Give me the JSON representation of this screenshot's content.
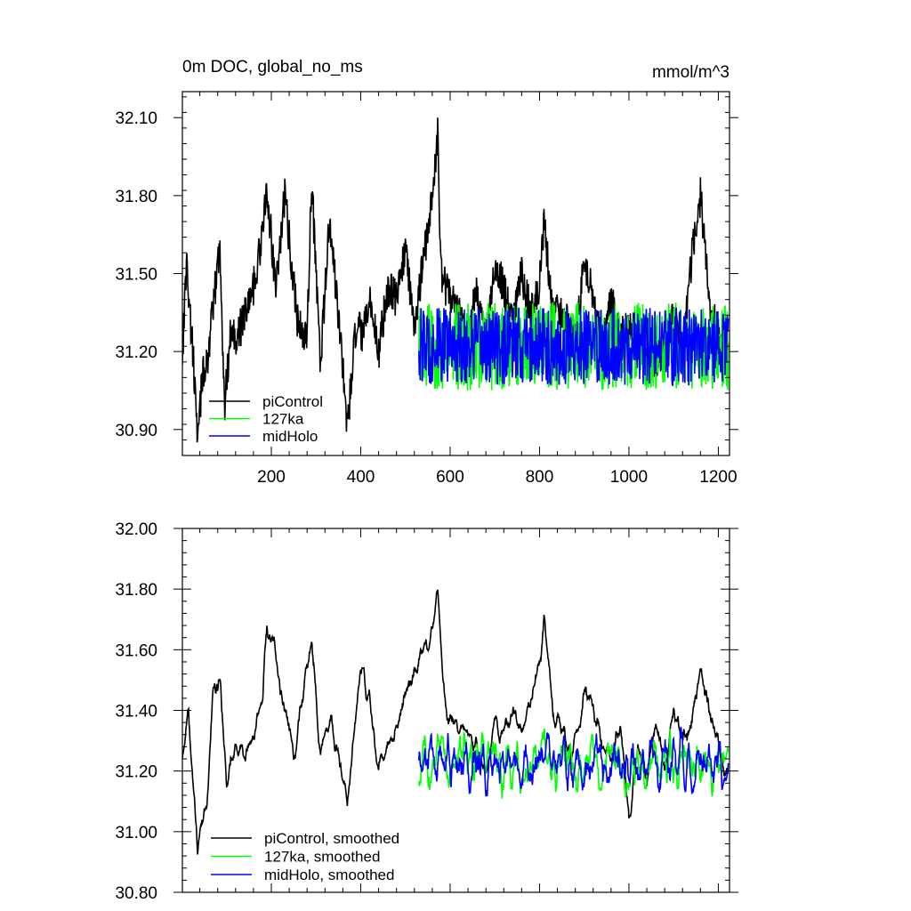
{
  "chart_data": [
    {
      "type": "line",
      "title": "0m DOC, global_no_ms",
      "units": "mmol/m^3",
      "xlim": [
        1,
        1225
      ],
      "ylim": [
        30.8,
        32.2
      ],
      "x_ticks": [
        200,
        400,
        600,
        800,
        1000,
        1200
      ],
      "x_tick_labels": [
        "200",
        "400",
        "600",
        "800",
        "1000",
        "1200"
      ],
      "y_ticks": [
        30.9,
        31.2,
        31.5,
        31.8,
        32.1
      ],
      "y_tick_labels": [
        "30.90",
        "31.20",
        "31.50",
        "31.80",
        "32.10"
      ],
      "grid": false,
      "legend_position": "bottom-left",
      "series": [
        {
          "name": "piControl",
          "color": "#000000",
          "x_start": 1,
          "x_end": 1220,
          "mean": 31.33,
          "amplitude": 0.17,
          "values": [
            [
              1,
              31.18
            ],
            [
              10,
              31.55
            ],
            [
              20,
              31.3
            ],
            [
              30,
              31.05
            ],
            [
              35,
              30.82
            ],
            [
              45,
              31.1
            ],
            [
              60,
              31.2
            ],
            [
              75,
              31.45
            ],
            [
              85,
              31.62
            ],
            [
              95,
              30.98
            ],
            [
              110,
              31.3
            ],
            [
              125,
              31.25
            ],
            [
              140,
              31.35
            ],
            [
              160,
              31.45
            ],
            [
              180,
              31.65
            ],
            [
              190,
              31.82
            ],
            [
              210,
              31.45
            ],
            [
              230,
              31.8
            ],
            [
              260,
              31.3
            ],
            [
              280,
              31.25
            ],
            [
              290,
              31.86
            ],
            [
              310,
              31.15
            ],
            [
              330,
              31.7
            ],
            [
              360,
              31.15
            ],
            [
              370,
              30.9
            ],
            [
              390,
              31.3
            ],
            [
              405,
              31.25
            ],
            [
              420,
              31.4
            ],
            [
              440,
              31.2
            ],
            [
              460,
              31.45
            ],
            [
              480,
              31.4
            ],
            [
              500,
              31.6
            ],
            [
              520,
              31.3
            ],
            [
              540,
              31.55
            ],
            [
              560,
              31.78
            ],
            [
              572,
              32.05
            ],
            [
              580,
              31.5
            ],
            [
              600,
              31.4
            ],
            [
              620,
              31.35
            ],
            [
              640,
              31.25
            ],
            [
              660,
              31.45
            ],
            [
              680,
              31.2
            ],
            [
              700,
              31.55
            ],
            [
              720,
              31.45
            ],
            [
              740,
              31.3
            ],
            [
              760,
              31.5
            ],
            [
              780,
              31.35
            ],
            [
              800,
              31.45
            ],
            [
              810,
              31.7
            ],
            [
              830,
              31.35
            ],
            [
              850,
              31.35
            ],
            [
              880,
              31.25
            ],
            [
              900,
              31.55
            ],
            [
              920,
              31.4
            ],
            [
              940,
              31.2
            ],
            [
              960,
              31.4
            ],
            [
              980,
              31.25
            ],
            [
              1000,
              31.3
            ],
            [
              1020,
              31.3
            ],
            [
              1040,
              31.2
            ],
            [
              1060,
              31.15
            ],
            [
              1080,
              31.2
            ],
            [
              1100,
              31.35
            ],
            [
              1120,
              31.2
            ],
            [
              1140,
              31.55
            ],
            [
              1160,
              31.8
            ],
            [
              1180,
              31.4
            ],
            [
              1200,
              31.25
            ],
            [
              1220,
              31.2
            ]
          ]
        },
        {
          "name": "127ka",
          "color": "#00ff00",
          "x_start": 530,
          "x_end": 1222,
          "mean": 31.22,
          "amplitude": 0.17
        },
        {
          "name": "midHolo",
          "color": "#0000ff",
          "x_start": 530,
          "x_end": 1222,
          "mean": 31.22,
          "amplitude": 0.15
        }
      ]
    },
    {
      "type": "line",
      "title": "",
      "xlim": [
        1,
        1225
      ],
      "ylim": [
        30.8,
        32.0
      ],
      "x_ticks": [
        200,
        400,
        600,
        800,
        1000,
        1200
      ],
      "y_ticks": [
        30.8,
        31.0,
        31.2,
        31.4,
        31.6,
        31.8,
        32.0
      ],
      "y_tick_labels": [
        "30.80",
        "31.00",
        "31.20",
        "31.40",
        "31.60",
        "31.80",
        "32.00"
      ],
      "grid": false,
      "legend_position": "bottom-left",
      "series": [
        {
          "name": "piControl, smoothed",
          "color": "#000000",
          "x_start": 1,
          "x_end": 1220,
          "mean": 31.33,
          "amplitude": 0.07,
          "values": [
            [
              1,
              31.25
            ],
            [
              15,
              31.43
            ],
            [
              25,
              31.15
            ],
            [
              35,
              30.94
            ],
            [
              55,
              31.1
            ],
            [
              70,
              31.45
            ],
            [
              85,
              31.51
            ],
            [
              100,
              31.15
            ],
            [
              120,
              31.3
            ],
            [
              140,
              31.25
            ],
            [
              160,
              31.3
            ],
            [
              180,
              31.45
            ],
            [
              190,
              31.7
            ],
            [
              210,
              31.55
            ],
            [
              230,
              31.4
            ],
            [
              250,
              31.25
            ],
            [
              270,
              31.45
            ],
            [
              290,
              31.64
            ],
            [
              310,
              31.25
            ],
            [
              330,
              31.35
            ],
            [
              350,
              31.25
            ],
            [
              370,
              31.1
            ],
            [
              400,
              31.55
            ],
            [
              420,
              31.45
            ],
            [
              440,
              31.2
            ],
            [
              460,
              31.3
            ],
            [
              480,
              31.35
            ],
            [
              500,
              31.45
            ],
            [
              540,
              31.6
            ],
            [
              560,
              31.65
            ],
            [
              572,
              31.81
            ],
            [
              590,
              31.4
            ],
            [
              620,
              31.35
            ],
            [
              650,
              31.3
            ],
            [
              680,
              31.2
            ],
            [
              700,
              31.35
            ],
            [
              720,
              31.3
            ],
            [
              740,
              31.4
            ],
            [
              760,
              31.35
            ],
            [
              780,
              31.45
            ],
            [
              800,
              31.55
            ],
            [
              810,
              31.7
            ],
            [
              830,
              31.4
            ],
            [
              850,
              31.35
            ],
            [
              870,
              31.25
            ],
            [
              900,
              31.45
            ],
            [
              920,
              31.4
            ],
            [
              940,
              31.3
            ],
            [
              960,
              31.25
            ],
            [
              980,
              31.35
            ],
            [
              1000,
              31.05
            ],
            [
              1020,
              31.3
            ],
            [
              1040,
              31.2
            ],
            [
              1060,
              31.35
            ],
            [
              1080,
              31.2
            ],
            [
              1100,
              31.4
            ],
            [
              1120,
              31.3
            ],
            [
              1140,
              31.35
            ],
            [
              1160,
              31.55
            ],
            [
              1180,
              31.4
            ],
            [
              1200,
              31.3
            ],
            [
              1220,
              31.2
            ]
          ]
        },
        {
          "name": "127ka, smoothed",
          "color": "#00ff00",
          "x_start": 530,
          "x_end": 1222,
          "mean": 31.22,
          "amplitude": 0.08
        },
        {
          "name": "midHolo, smoothed",
          "color": "#0000ff",
          "x_start": 530,
          "x_end": 1222,
          "mean": 31.22,
          "amplitude": 0.07
        }
      ]
    }
  ]
}
